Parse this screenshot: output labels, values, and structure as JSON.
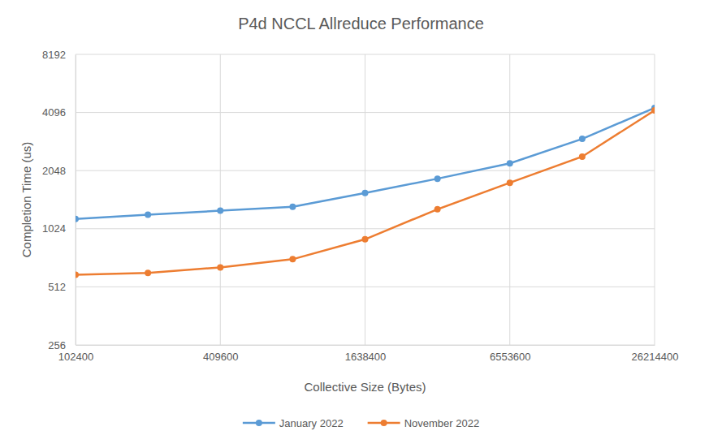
{
  "chart_data": {
    "type": "line",
    "title": "P4d NCCL Allreduce Performance",
    "x_label": "Collective Size (Bytes)",
    "y_label": "Completion Time (us)",
    "x": [
      102400,
      204800,
      409600,
      819200,
      1638400,
      3276800,
      6553600,
      13107200,
      26214400
    ],
    "series": [
      {
        "name": "January 2022",
        "color": "#5b9bd5",
        "marker": "circle",
        "line_style": "solid",
        "values": [
          1150,
          1210,
          1270,
          1330,
          1570,
          1860,
          2235,
          2990,
          4325
        ]
      },
      {
        "name": "November 2022",
        "color": "#ed7d31",
        "marker": "circle",
        "line_style": "solid",
        "values": [
          592,
          605,
          646,
          712,
          903,
          1291,
          1772,
          2420,
          4200
        ]
      }
    ],
    "xlim": [
      102400,
      26214400
    ],
    "xticks": [
      102400,
      409600,
      1638400,
      6553600,
      26214400
    ],
    "ylim": [
      256,
      8192
    ],
    "yticks": [
      256,
      512,
      1024,
      2048,
      4096,
      8192
    ],
    "log": true,
    "grid": true,
    "legend": "bottom"
  }
}
